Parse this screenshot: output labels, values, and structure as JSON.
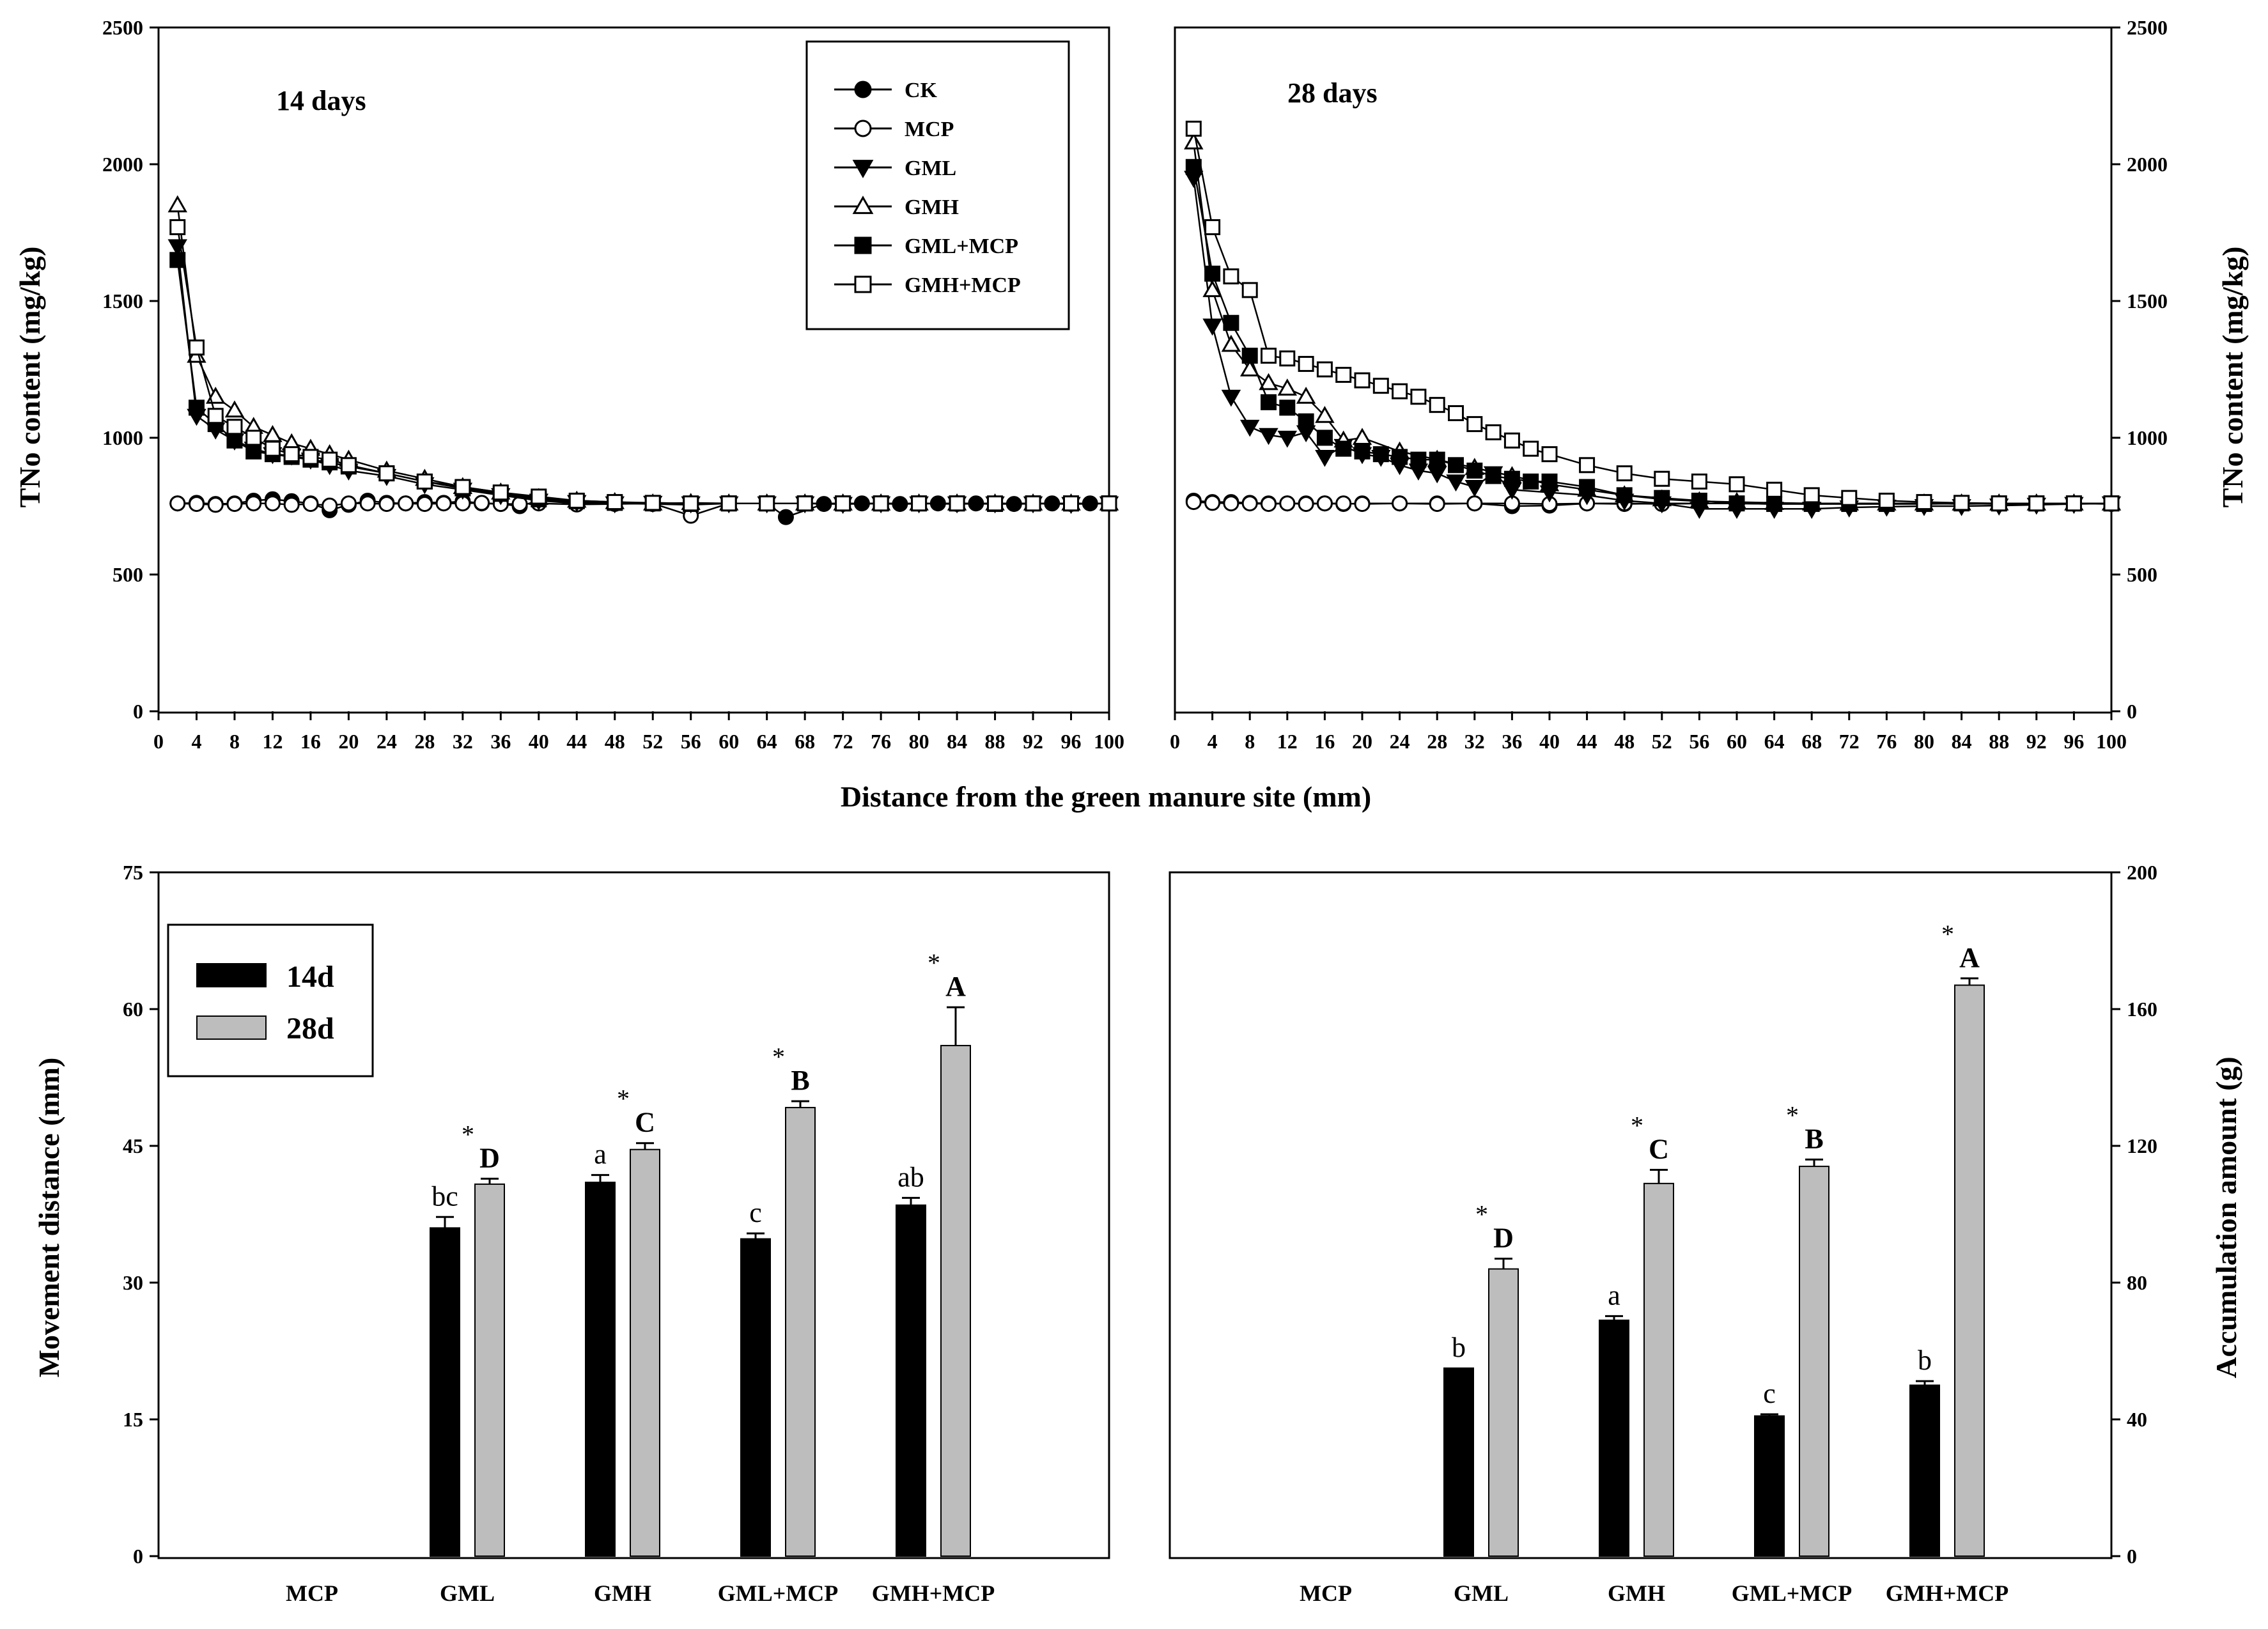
{
  "figure": {
    "shared_xlabel": "Distance from the green manure site (mm)"
  },
  "chart_data": [
    {
      "id": "tl",
      "type": "line",
      "title": "14 days",
      "xlabel": "Distance from the green manure site (mm)",
      "ylabel": "TNo content (mg/kg)",
      "xlim": [
        0,
        100
      ],
      "ylim": [
        0,
        2500
      ],
      "xticks": [
        0,
        4,
        8,
        12,
        16,
        20,
        24,
        28,
        32,
        36,
        40,
        44,
        48,
        52,
        56,
        60,
        64,
        68,
        72,
        76,
        80,
        84,
        88,
        92,
        96,
        100
      ],
      "yticks": [
        0,
        500,
        1000,
        1500,
        2000,
        2500
      ],
      "legend": [
        {
          "name": "CK",
          "marker": "filled-circle"
        },
        {
          "name": "MCP",
          "marker": "open-circle"
        },
        {
          "name": "GML",
          "marker": "filled-triangle-down"
        },
        {
          "name": "GMH",
          "marker": "open-triangle-up"
        },
        {
          "name": "GML+MCP",
          "marker": "filled-square"
        },
        {
          "name": "GMH+MCP",
          "marker": "open-square"
        }
      ],
      "series": [
        {
          "name": "CK",
          "marker": "filled-circle",
          "x": [
            2,
            4,
            6,
            8,
            10,
            12,
            14,
            16,
            18,
            20,
            22,
            24,
            26,
            28,
            30,
            32,
            34,
            36,
            38,
            40,
            44,
            48,
            52,
            56,
            60,
            64,
            66,
            70,
            74,
            78,
            82,
            86,
            90,
            94,
            98,
            100
          ],
          "values": [
            760,
            762,
            758,
            760,
            770,
            775,
            768,
            760,
            735,
            755,
            770,
            762,
            760,
            765,
            762,
            768,
            760,
            758,
            750,
            770,
            760,
            760,
            758,
            755,
            760,
            760,
            710,
            758,
            760,
            758,
            760,
            760,
            758,
            760,
            760,
            760
          ]
        },
        {
          "name": "MCP",
          "marker": "open-circle",
          "x": [
            2,
            4,
            6,
            8,
            10,
            12,
            14,
            16,
            18,
            20,
            22,
            24,
            26,
            28,
            30,
            32,
            34,
            36,
            38,
            40,
            44,
            48,
            52,
            56,
            60,
            64,
            68,
            72,
            76,
            80,
            84,
            88,
            92,
            96,
            100
          ],
          "values": [
            760,
            758,
            755,
            758,
            760,
            760,
            755,
            758,
            752,
            760,
            760,
            758,
            760,
            758,
            760,
            760,
            762,
            758,
            758,
            760,
            756,
            758,
            760,
            715,
            760,
            760,
            760,
            758,
            760,
            760,
            758,
            760,
            760,
            758,
            760
          ]
        },
        {
          "name": "GML",
          "marker": "filled-triangle-down",
          "x": [
            2,
            4,
            6,
            8,
            10,
            12,
            14,
            16,
            18,
            20,
            24,
            28,
            32,
            36,
            40,
            44,
            48,
            52,
            56,
            60,
            64,
            68,
            72,
            76,
            80,
            84,
            88,
            92,
            96,
            100
          ],
          "values": [
            1700,
            1080,
            1030,
            990,
            960,
            940,
            935,
            920,
            900,
            880,
            860,
            830,
            810,
            790,
            770,
            765,
            760,
            762,
            760,
            760,
            760,
            760,
            758,
            760,
            760,
            760,
            760,
            760,
            758,
            760
          ]
        },
        {
          "name": "GMH",
          "marker": "open-triangle-up",
          "x": [
            2,
            4,
            6,
            8,
            10,
            12,
            14,
            16,
            18,
            20,
            24,
            28,
            32,
            36,
            40,
            44,
            48,
            52,
            56,
            60,
            64,
            68,
            72,
            76,
            80,
            84,
            88,
            92,
            96,
            100
          ],
          "values": [
            1850,
            1300,
            1150,
            1100,
            1040,
            1010,
            980,
            960,
            940,
            920,
            880,
            850,
            820,
            800,
            780,
            770,
            765,
            760,
            762,
            760,
            760,
            760,
            760,
            760,
            760,
            760,
            760,
            760,
            760,
            760
          ]
        },
        {
          "name": "GML+MCP",
          "marker": "filled-square",
          "x": [
            2,
            4,
            6,
            8,
            10,
            12,
            14,
            16,
            18,
            20,
            24,
            28,
            32,
            36,
            40,
            44,
            48,
            52,
            56,
            60,
            64,
            68,
            72,
            76,
            80,
            84,
            88,
            92,
            96,
            100
          ],
          "values": [
            1650,
            1110,
            1050,
            990,
            950,
            940,
            930,
            920,
            910,
            895,
            870,
            840,
            815,
            795,
            775,
            768,
            762,
            760,
            758,
            760,
            760,
            760,
            760,
            760,
            760,
            760,
            758,
            760,
            760,
            760
          ]
        },
        {
          "name": "GMH+MCP",
          "marker": "open-square",
          "x": [
            2,
            4,
            6,
            8,
            10,
            12,
            14,
            16,
            18,
            20,
            24,
            28,
            32,
            36,
            40,
            44,
            48,
            52,
            56,
            60,
            64,
            68,
            72,
            76,
            80,
            84,
            88,
            92,
            96,
            100
          ],
          "values": [
            1770,
            1330,
            1080,
            1040,
            1000,
            960,
            940,
            930,
            920,
            900,
            870,
            840,
            820,
            800,
            785,
            770,
            765,
            762,
            760,
            760,
            760,
            760,
            760,
            760,
            760,
            760,
            760,
            760,
            760,
            760
          ]
        }
      ]
    },
    {
      "id": "tr",
      "type": "line",
      "title": "28 days",
      "xlabel": "Distance from the green manure site (mm)",
      "ylabel": "TNo content (mg/kg)",
      "xlim": [
        0,
        100
      ],
      "ylim": [
        0,
        2500
      ],
      "xticks": [
        0,
        4,
        8,
        12,
        16,
        20,
        24,
        28,
        32,
        36,
        40,
        44,
        48,
        52,
        56,
        60,
        64,
        68,
        72,
        76,
        80,
        84,
        88,
        92,
        96,
        100
      ],
      "yticks": [
        0,
        500,
        1000,
        1500,
        2000,
        2500
      ],
      "series": [
        {
          "name": "CK",
          "marker": "filled-circle",
          "x": [
            2,
            4,
            6,
            8,
            10,
            12,
            14,
            16,
            18,
            20,
            24,
            28,
            32,
            36,
            40,
            44,
            48,
            52,
            56,
            60,
            64,
            68,
            72,
            76,
            80,
            84,
            88,
            92,
            96,
            100
          ],
          "values": [
            770,
            765,
            765,
            762,
            760,
            760,
            760,
            760,
            758,
            760,
            760,
            760,
            760,
            750,
            752,
            760,
            758,
            760,
            760,
            760,
            758,
            760,
            760,
            760,
            760,
            760,
            758,
            760,
            760,
            760
          ]
        },
        {
          "name": "MCP",
          "marker": "open-circle",
          "x": [
            2,
            4,
            6,
            8,
            10,
            12,
            14,
            16,
            18,
            20,
            24,
            28,
            32,
            36,
            40,
            44,
            48,
            52,
            56,
            60,
            64,
            68,
            72,
            76,
            80,
            84,
            88,
            92,
            96,
            100
          ],
          "values": [
            765,
            762,
            760,
            760,
            758,
            760,
            758,
            760,
            760,
            758,
            760,
            758,
            760,
            760,
            758,
            760,
            760,
            758,
            760,
            760,
            760,
            758,
            760,
            760,
            760,
            758,
            760,
            760,
            760,
            758
          ]
        },
        {
          "name": "GML",
          "marker": "filled-triangle-down",
          "x": [
            2,
            4,
            6,
            8,
            10,
            12,
            14,
            16,
            18,
            20,
            22,
            24,
            26,
            28,
            30,
            32,
            34,
            36,
            40,
            44,
            48,
            52,
            56,
            60,
            64,
            68,
            72,
            76,
            80,
            84,
            88,
            92,
            96,
            100
          ],
          "values": [
            1950,
            1410,
            1150,
            1040,
            1010,
            1000,
            1020,
            930,
            970,
            940,
            930,
            900,
            880,
            870,
            840,
            820,
            870,
            810,
            800,
            790,
            770,
            760,
            740,
            740,
            740,
            740,
            745,
            748,
            750,
            750,
            752,
            755,
            758,
            760
          ]
        },
        {
          "name": "GMH",
          "marker": "open-triangle-up",
          "x": [
            2,
            4,
            6,
            8,
            10,
            12,
            14,
            16,
            18,
            20,
            24,
            28,
            32,
            36,
            40,
            44,
            48,
            52,
            56,
            60,
            64,
            68,
            72,
            76,
            80,
            84,
            88,
            92,
            96,
            100
          ],
          "values": [
            2080,
            1540,
            1340,
            1250,
            1200,
            1180,
            1150,
            1080,
            990,
            1000,
            950,
            920,
            890,
            860,
            830,
            810,
            790,
            775,
            768,
            765,
            762,
            760,
            760,
            760,
            760,
            760,
            760,
            760,
            760,
            760
          ]
        },
        {
          "name": "GML+MCP",
          "marker": "filled-square",
          "x": [
            2,
            4,
            6,
            8,
            10,
            12,
            14,
            16,
            18,
            20,
            22,
            24,
            26,
            28,
            30,
            32,
            34,
            36,
            38,
            40,
            44,
            48,
            52,
            56,
            60,
            64,
            68,
            72,
            76,
            80,
            84,
            88,
            92,
            96,
            100
          ],
          "values": [
            1990,
            1600,
            1420,
            1300,
            1130,
            1110,
            1060,
            1000,
            960,
            950,
            940,
            930,
            920,
            920,
            900,
            880,
            860,
            850,
            840,
            840,
            820,
            790,
            780,
            770,
            760,
            758,
            758,
            758,
            758,
            758,
            760,
            760,
            760,
            760,
            760
          ]
        },
        {
          "name": "GMH+MCP",
          "marker": "open-square",
          "x": [
            2,
            4,
            6,
            8,
            10,
            12,
            14,
            16,
            18,
            20,
            22,
            24,
            26,
            28,
            30,
            32,
            34,
            36,
            38,
            40,
            44,
            48,
            52,
            56,
            60,
            64,
            68,
            72,
            76,
            80,
            84,
            88,
            92,
            96,
            100
          ],
          "values": [
            2130,
            1770,
            1590,
            1540,
            1300,
            1290,
            1270,
            1250,
            1230,
            1210,
            1190,
            1170,
            1150,
            1120,
            1090,
            1050,
            1020,
            990,
            960,
            940,
            900,
            870,
            850,
            840,
            830,
            810,
            790,
            780,
            770,
            765,
            762,
            760,
            760,
            760,
            760
          ]
        }
      ]
    },
    {
      "id": "bl",
      "type": "bar",
      "title": "",
      "xlabel": "",
      "ylabel": "Movement distance (mm)",
      "ylim": [
        0,
        75
      ],
      "yticks": [
        0,
        15,
        30,
        45,
        60,
        75
      ],
      "categories": [
        "MCP",
        "GML",
        "GMH",
        "GML+MCP",
        "GMH+MCP"
      ],
      "legend": [
        {
          "name": "14d",
          "color": "#000000"
        },
        {
          "name": "28d",
          "color": "#bdbdbd"
        }
      ],
      "series": [
        {
          "name": "14d",
          "values": [
            0,
            36.0,
            41.0,
            34.8,
            38.5
          ],
          "errors": [
            0,
            1.2,
            0.8,
            0.6,
            0.8
          ],
          "letters": [
            "",
            "bc",
            "a",
            "c",
            "ab"
          ]
        },
        {
          "name": "28d",
          "values": [
            0,
            40.8,
            44.6,
            49.2,
            56.0
          ],
          "errors": [
            0,
            0.6,
            0.7,
            0.7,
            4.2
          ],
          "letters": [
            "",
            "D",
            "C",
            "B",
            "A"
          ],
          "stars": [
            "",
            "*",
            "*",
            "*",
            "*"
          ]
        }
      ]
    },
    {
      "id": "br",
      "type": "bar",
      "title": "",
      "xlabel": "",
      "ylabel": "Accumulation amount (g)",
      "ylim": [
        0,
        200
      ],
      "yticks": [
        0,
        40,
        80,
        120,
        160,
        200
      ],
      "categories": [
        "MCP",
        "GML",
        "GMH",
        "GML+MCP",
        "GMH+MCP"
      ],
      "series": [
        {
          "name": "14d",
          "values": [
            0,
            55,
            69,
            41,
            50
          ],
          "errors": [
            0,
            0,
            1.2,
            0.5,
            1.2
          ],
          "letters": [
            "",
            "b",
            "a",
            "c",
            "b"
          ]
        },
        {
          "name": "28d",
          "values": [
            0,
            84,
            109,
            114,
            167
          ],
          "errors": [
            0,
            3,
            4,
            2,
            2
          ],
          "letters": [
            "",
            "D",
            "C",
            "B",
            "A"
          ],
          "stars": [
            "",
            "*",
            "*",
            "*",
            "*"
          ]
        }
      ]
    }
  ]
}
